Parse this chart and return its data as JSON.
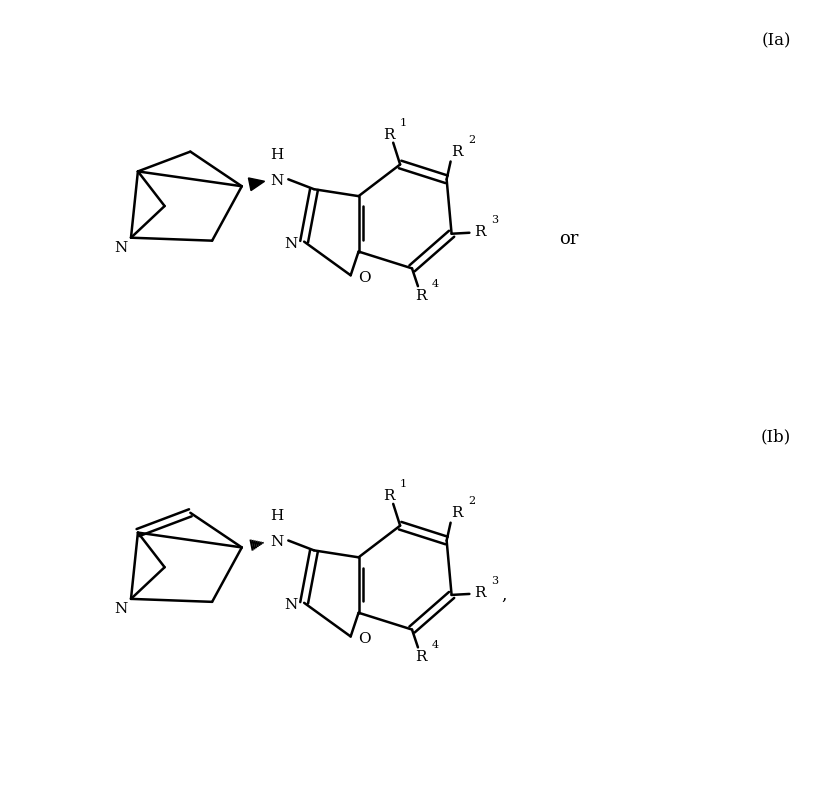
{
  "background_color": "#ffffff",
  "line_color": "#000000",
  "line_width": 1.8,
  "fig_width": 8.25,
  "fig_height": 7.97,
  "label_Ia": "(Ia)",
  "label_Ib": "(Ib)",
  "or_text": "or"
}
